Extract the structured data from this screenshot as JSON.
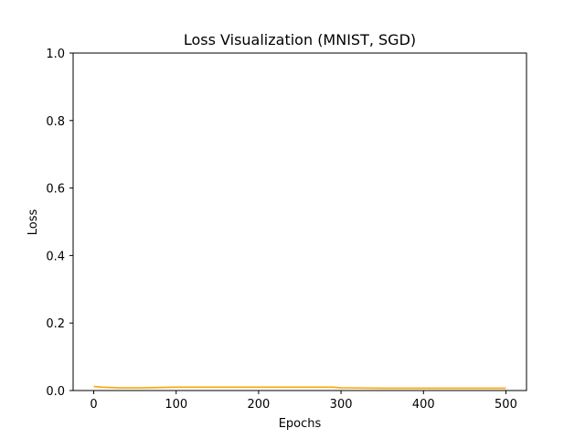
{
  "chart_data": {
    "type": "line",
    "title": "Loss Visualization (MNIST, SGD)",
    "xlabel": "Epochs",
    "ylabel": "Loss",
    "xlim": [
      -25,
      525
    ],
    "ylim": [
      0,
      1.0
    ],
    "x_ticks": [
      0,
      100,
      200,
      300,
      400,
      500
    ],
    "y_ticks": [
      0.0,
      0.2,
      0.4,
      0.6,
      0.8,
      1.0
    ],
    "x_tick_labels": [
      "0",
      "100",
      "200",
      "300",
      "400",
      "500"
    ],
    "y_tick_labels": [
      "0.0",
      "0.2",
      "0.4",
      "0.6",
      "0.8",
      "1.0"
    ],
    "grid": false,
    "series": [
      {
        "color": "#ffa500",
        "x": [
          0,
          10,
          20,
          30,
          40,
          60,
          80,
          100,
          150,
          200,
          250,
          290,
          300,
          350,
          400,
          450,
          500
        ],
        "y": [
          0.012,
          0.01,
          0.009,
          0.008,
          0.008,
          0.008,
          0.009,
          0.01,
          0.01,
          0.01,
          0.01,
          0.01,
          0.008,
          0.007,
          0.007,
          0.007,
          0.007
        ]
      }
    ]
  }
}
